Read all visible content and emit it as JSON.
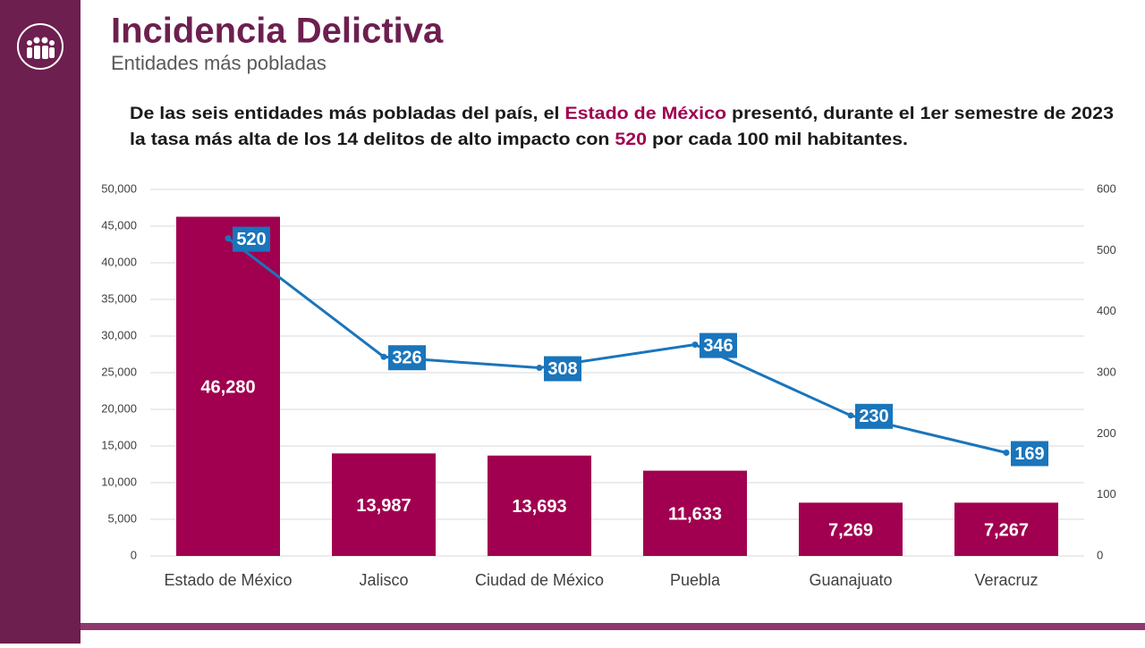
{
  "header": {
    "title": "Incidencia Delictiva",
    "subtitle": "Entidades más pobladas"
  },
  "description": {
    "lines": [
      [
        {
          "text": "De las seis entidades más pobladas del país, el ",
          "color": "#1a1a1a"
        },
        {
          "text": "Estado de México",
          "color": "#a0004f"
        },
        {
          "text": " presentó, durante el 1er semestre de 2023",
          "color": "#1a1a1a"
        }
      ],
      [
        {
          "text": "la tasa más alta de los 14 delitos de alto impacto con ",
          "color": "#1a1a1a"
        },
        {
          "text": "520",
          "color": "#a0004f"
        },
        {
          "text": " por cada 100 mil habitantes.",
          "color": "#1a1a1a"
        }
      ]
    ]
  },
  "chart_data": {
    "type": "bar",
    "categories": [
      "Estado de México",
      "Jalisco",
      "Ciudad de México",
      "Puebla",
      "Guanajuato",
      "Veracruz"
    ],
    "series": [
      {
        "type": "bar",
        "color": "#a0004f",
        "values": [
          46280,
          13987,
          13693,
          11633,
          7269,
          7267
        ],
        "value_labels": [
          "46,280",
          "13,987",
          "13,693",
          "11,633",
          "7,269",
          "7,267"
        ]
      },
      {
        "type": "line",
        "axis": "y2",
        "color": "#1a75bb",
        "values": [
          520,
          326,
          308,
          346,
          230,
          169
        ]
      }
    ],
    "ylim": [
      0,
      50000
    ],
    "yticks": [
      0,
      {
        "value": 5000,
        "label": "5,000"
      },
      {
        "value": 10000,
        "label": "10,000"
      },
      {
        "value": 15000,
        "label": "15,000"
      },
      {
        "value": 20000,
        "label": "20,000"
      },
      {
        "value": 25000,
        "label": "25,000"
      },
      {
        "value": 30000,
        "label": "30,000"
      },
      {
        "value": 35000,
        "label": "35,000"
      },
      {
        "value": 40000,
        "label": "40,000"
      },
      {
        "value": 45000,
        "label": "45,000"
      },
      {
        "value": 50000,
        "label": "50,000"
      }
    ],
    "y2lim": [
      0,
      600
    ],
    "y2ticks": [
      0,
      100,
      200,
      300,
      400,
      500,
      600
    ],
    "grid": true
  }
}
